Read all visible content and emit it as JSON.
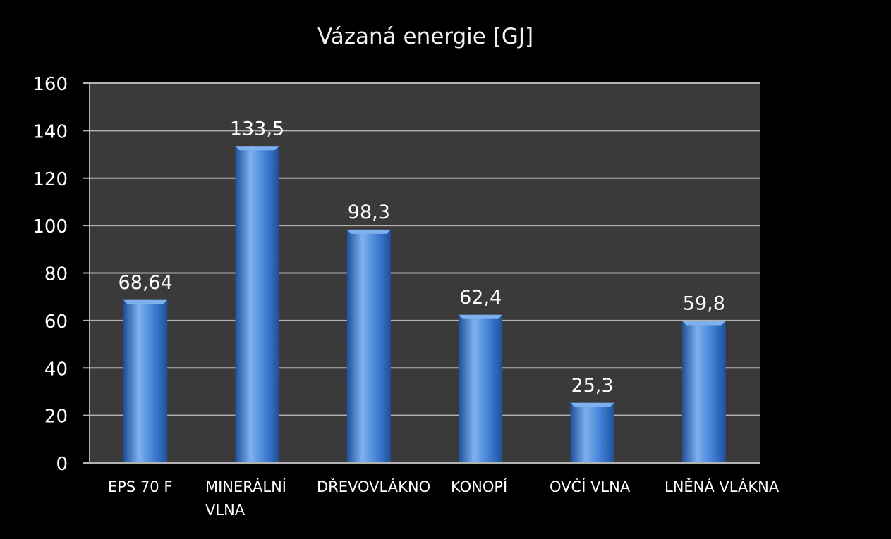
{
  "chart_data": {
    "type": "bar",
    "title": "Vázaná energie [GJ]",
    "categories": [
      [
        "EPS 70 F"
      ],
      [
        "MINERÁLNÍ",
        "VLNA"
      ],
      [
        "DŘEVOVLÁKNO"
      ],
      [
        "KONOPÍ"
      ],
      [
        "OVČÍ VLNA"
      ],
      [
        "LNĚNÁ VLÁKNA"
      ]
    ],
    "values": [
      68.64,
      133.5,
      98.3,
      62.4,
      25.3,
      59.8
    ],
    "value_labels": [
      "68,64",
      "133,5",
      "98,3",
      "62,4",
      "25,3",
      "59,8"
    ],
    "ylim": [
      0,
      160
    ],
    "yticks": [
      0,
      20,
      40,
      60,
      80,
      100,
      120,
      140,
      160
    ],
    "grid": true,
    "legend": "none",
    "colors": {
      "background": "#000000",
      "plot_area": "#3a3a3a",
      "gridline": "#b3b3b3",
      "bar_main": "#3f7fd6",
      "bar_light": "#7fb0ee",
      "bar_dark": "#1f4f9a",
      "text": "#ffffff"
    }
  }
}
